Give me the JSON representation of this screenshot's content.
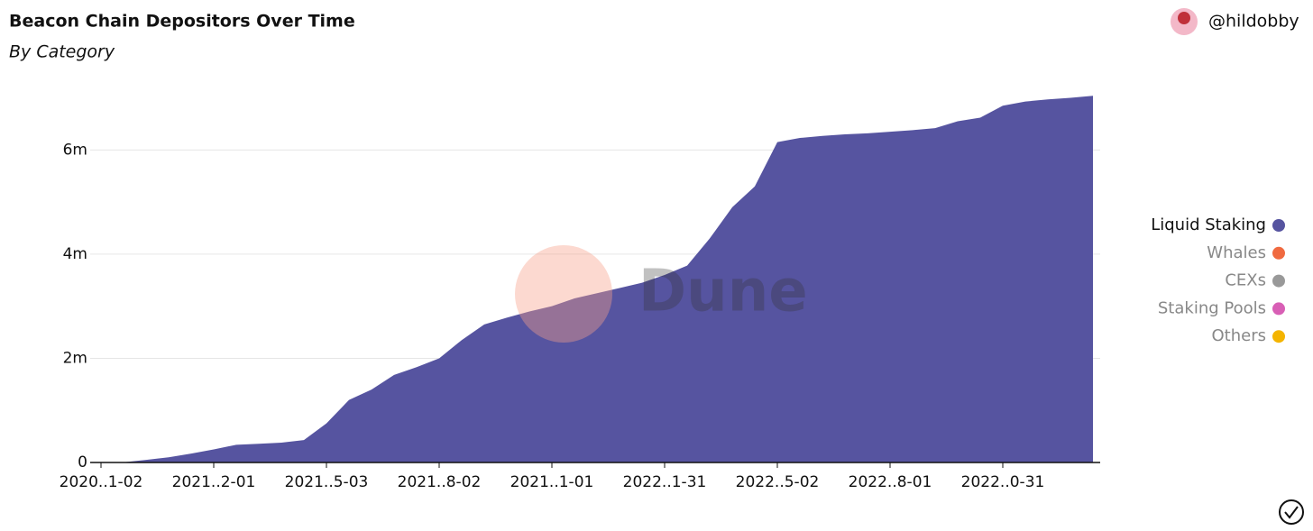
{
  "chart_data": {
    "type": "area",
    "title": "Beacon Chain Depositors Over Time",
    "subtitle": "By Category",
    "author": "@hildobby",
    "watermark": "Dune",
    "categories": [
      "2020..1-02",
      null,
      null,
      null,
      null,
      "2021..2-01",
      null,
      null,
      null,
      null,
      "2021..5-03",
      null,
      null,
      null,
      null,
      "2021..8-02",
      null,
      null,
      null,
      null,
      "2021..1-01",
      null,
      null,
      null,
      null,
      "2022..1-31",
      null,
      null,
      null,
      null,
      "2022..5-02",
      null,
      null,
      null,
      null,
      "2022..8-01",
      null,
      null,
      null,
      null,
      "2022..0-31",
      null,
      null,
      null,
      null
    ],
    "series": [
      {
        "name": "Liquid Staking",
        "color": "#5654a0",
        "visible": true,
        "values": [
          0,
          5000,
          50000,
          100000,
          170000,
          250000,
          340000,
          360000,
          380000,
          430000,
          750000,
          1200000,
          1400000,
          1680000,
          1830000,
          2000000,
          2350000,
          2650000,
          2780000,
          2900000,
          3000000,
          3150000,
          3250000,
          3350000,
          3450000,
          3600000,
          3780000,
          4300000,
          4900000,
          5300000,
          6150000,
          6230000,
          6270000,
          6300000,
          6320000,
          6350000,
          6380000,
          6420000,
          6550000,
          6620000,
          6850000,
          6930000,
          6970000,
          7000000,
          7040000
        ]
      },
      {
        "name": "Whales",
        "color": "#f06a40",
        "visible": false
      },
      {
        "name": "CEXs",
        "color": "#999999",
        "visible": false
      },
      {
        "name": "Staking Pools",
        "color": "#d85fb5",
        "visible": false
      },
      {
        "name": "Others",
        "color": "#f4b400",
        "visible": false
      }
    ],
    "ylim": [
      0,
      7200000
    ],
    "yticks": [
      0,
      {
        "value": 2000000,
        "label": "2m"
      },
      {
        "value": 4000000,
        "label": "4m"
      },
      {
        "value": 6000000,
        "label": "6m"
      }
    ],
    "grid": true
  }
}
